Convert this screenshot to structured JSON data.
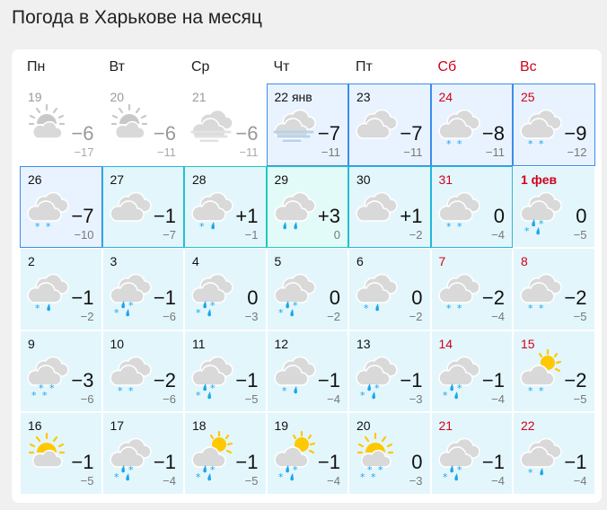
{
  "title": "Погода в Харькове на месяц",
  "weekdays": [
    {
      "label": "Пн"
    },
    {
      "label": "Вт"
    },
    {
      "label": "Ср"
    },
    {
      "label": "Чт"
    },
    {
      "label": "Пт"
    },
    {
      "label": "Сб",
      "weekend": true
    },
    {
      "label": "Вс",
      "weekend": true
    }
  ],
  "colors": {
    "weekend": "#d0021b",
    "precip": "#1aa7ec",
    "cloud": "#d9d9d9",
    "sun": "#ffc800",
    "highlight_border": "#3b8de8"
  },
  "days": [
    {
      "date": "19",
      "icon": "sun-top",
      "precip": "",
      "max": "−6",
      "min": "−17",
      "past": true
    },
    {
      "date": "20",
      "icon": "sun-top",
      "precip": "",
      "max": "−6",
      "min": "−11",
      "past": true
    },
    {
      "date": "21",
      "icon": "fog",
      "precip": "",
      "max": "−6",
      "min": "−11",
      "past": true
    },
    {
      "date": "22 янв",
      "icon": "fog",
      "precip": "",
      "max": "−7",
      "min": "−11",
      "hl": "#3b8de8",
      "bg": "#e9f3ff"
    },
    {
      "date": "23",
      "icon": "cloudy",
      "precip": "",
      "max": "−7",
      "min": "−11",
      "hl": "#3b8de8",
      "bg": "#e9f3ff"
    },
    {
      "date": "24",
      "icon": "cloudy",
      "precip": "ss",
      "max": "−8",
      "min": "−11",
      "weekend": true,
      "hl": "#3b8de8",
      "bg": "#e9f3ff"
    },
    {
      "date": "25",
      "icon": "cloudy",
      "precip": "ss",
      "max": "−9",
      "min": "−12",
      "weekend": true,
      "hl": "#3b8de8",
      "bg": "#e9f3ff"
    },
    {
      "date": "26",
      "icon": "cloudy",
      "precip": "ss",
      "max": "−7",
      "min": "−10",
      "hl": "#3b8de8",
      "bg": "#e9f3ff"
    },
    {
      "date": "27",
      "icon": "cloudy",
      "precip": "",
      "max": "−1",
      "min": "−7",
      "hl": "#27b3e6"
    },
    {
      "date": "28",
      "icon": "cloudy",
      "precip": "sd",
      "max": "+1",
      "min": "−1",
      "hl": "#1ec9c0"
    },
    {
      "date": "29",
      "icon": "cloudy",
      "precip": "dd",
      "max": "+3",
      "min": "0",
      "hl": "#1ec9c0",
      "bg": "#e3fbf8"
    },
    {
      "date": "30",
      "icon": "cloudy",
      "precip": "",
      "max": "+1",
      "min": "−2",
      "hl": "#1fb8d9"
    },
    {
      "date": "31",
      "icon": "cloudy",
      "precip": "ss",
      "max": "0",
      "min": "−4",
      "weekend": true,
      "hl": "#1fb8d9"
    },
    {
      "date": "1 фев",
      "icon": "cloudy",
      "precip": "mix",
      "max": "0",
      "min": "−5",
      "weekend": true,
      "bold": true
    },
    {
      "date": "2",
      "icon": "cloudy",
      "precip": "sd",
      "max": "−1",
      "min": "−2"
    },
    {
      "date": "3",
      "icon": "cloudy",
      "precip": "mix",
      "max": "−1",
      "min": "−6"
    },
    {
      "date": "4",
      "icon": "cloudy",
      "precip": "mix",
      "max": "0",
      "min": "−3"
    },
    {
      "date": "5",
      "icon": "cloudy",
      "precip": "mix",
      "max": "0",
      "min": "−2"
    },
    {
      "date": "6",
      "icon": "cloudy",
      "precip": "sd",
      "max": "0",
      "min": "−2"
    },
    {
      "date": "7",
      "icon": "cloudy",
      "precip": "ss",
      "max": "−2",
      "min": "−4",
      "weekend": true
    },
    {
      "date": "8",
      "icon": "cloudy",
      "precip": "ss",
      "max": "−2",
      "min": "−5",
      "weekend": true
    },
    {
      "date": "9",
      "icon": "cloudy",
      "precip": "ssss",
      "max": "−3",
      "min": "−6"
    },
    {
      "date": "10",
      "icon": "cloudy",
      "precip": "ss",
      "max": "−2",
      "min": "−6"
    },
    {
      "date": "11",
      "icon": "cloudy",
      "precip": "mix",
      "max": "−1",
      "min": "−5"
    },
    {
      "date": "12",
      "icon": "cloudy",
      "precip": "sd",
      "max": "−1",
      "min": "−4"
    },
    {
      "date": "13",
      "icon": "cloudy",
      "precip": "mix",
      "max": "−1",
      "min": "−3"
    },
    {
      "date": "14",
      "icon": "cloudy",
      "precip": "mix",
      "max": "−1",
      "min": "−4",
      "weekend": true
    },
    {
      "date": "15",
      "icon": "sun-cloud",
      "precip": "ss",
      "max": "−2",
      "min": "−5",
      "weekend": true
    },
    {
      "date": "16",
      "icon": "sun-top",
      "precip": "",
      "max": "−1",
      "min": "−5"
    },
    {
      "date": "17",
      "icon": "cloudy",
      "precip": "mix",
      "max": "−1",
      "min": "−4"
    },
    {
      "date": "18",
      "icon": "sun-cloud",
      "precip": "mix",
      "max": "−1",
      "min": "−5"
    },
    {
      "date": "19",
      "icon": "sun-cloud",
      "precip": "mix",
      "max": "−1",
      "min": "−4"
    },
    {
      "date": "20",
      "icon": "sun-top",
      "precip": "ssss",
      "max": "0",
      "min": "−3"
    },
    {
      "date": "21",
      "icon": "cloudy",
      "precip": "mix",
      "max": "−1",
      "min": "−4",
      "weekend": true
    },
    {
      "date": "22",
      "icon": "cloudy",
      "precip": "sd",
      "max": "−1",
      "min": "−4",
      "weekend": true
    }
  ]
}
